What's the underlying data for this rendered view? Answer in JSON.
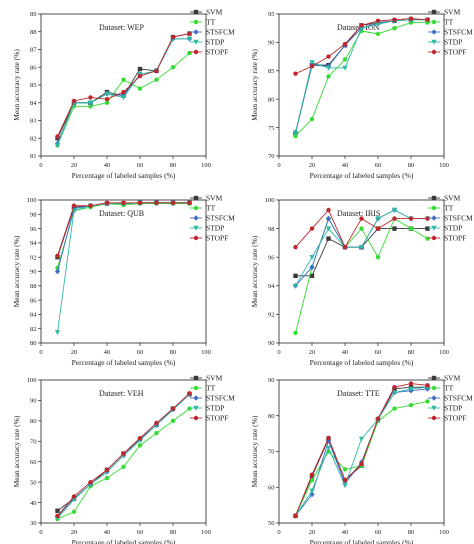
{
  "chart_data": [
    {
      "type": "line",
      "title": "Dataset: WEP",
      "xlabel": "Percentage of labeled samples (%)",
      "ylabel": "Mean accuracy rate (%)",
      "xlim": [
        0,
        100
      ],
      "ylim": [
        81,
        89
      ],
      "xticks": [
        "0",
        "20",
        "40",
        "60",
        "80",
        "100"
      ],
      "yticks": [
        "81",
        "82",
        "83",
        "84",
        "85",
        "86",
        "87",
        "88",
        "89"
      ],
      "x": [
        10,
        20,
        30,
        40,
        50,
        60,
        70,
        80,
        90
      ],
      "series": [
        {
          "name": "SVM",
          "values": [
            82.0,
            84.0,
            84.0,
            84.6,
            84.4,
            85.9,
            85.8,
            87.7,
            87.9
          ]
        },
        {
          "name": "TT",
          "values": [
            81.6,
            83.8,
            83.8,
            84.0,
            85.3,
            84.8,
            85.3,
            86.0,
            86.8
          ]
        },
        {
          "name": "STSFCM",
          "values": [
            81.7,
            84.0,
            84.0,
            84.5,
            84.4,
            85.6,
            85.8,
            87.6,
            87.6
          ]
        },
        {
          "name": "STDP",
          "values": [
            81.6,
            84.0,
            84.0,
            84.5,
            84.3,
            85.6,
            85.8,
            87.6,
            87.6
          ]
        },
        {
          "name": "STOPF",
          "values": [
            82.1,
            84.1,
            84.3,
            84.2,
            84.6,
            85.5,
            85.8,
            87.7,
            87.9
          ]
        }
      ]
    },
    {
      "type": "line",
      "title": "Dataset: ION",
      "xlabel": "Percentage of labeled samples (%)",
      "ylabel": "Mean accuracy rate (%)",
      "xlim": [
        0,
        100
      ],
      "ylim": [
        70,
        95
      ],
      "xticks": [
        "0",
        "20",
        "40",
        "60",
        "80",
        "100"
      ],
      "yticks": [
        "70",
        "75",
        "80",
        "85",
        "90",
        "95"
      ],
      "x": [
        10,
        20,
        30,
        40,
        50,
        60,
        70,
        80,
        90
      ],
      "series": [
        {
          "name": "SVM",
          "values": [
            74.0,
            86.0,
            86.0,
            89.5,
            93.0,
            93.5,
            93.8,
            94.0,
            94.0
          ]
        },
        {
          "name": "TT",
          "values": [
            73.5,
            76.5,
            84.0,
            87.0,
            92.0,
            91.5,
            92.5,
            93.5,
            93.5
          ]
        },
        {
          "name": "STSFCM",
          "values": [
            74.2,
            86.0,
            85.8,
            89.5,
            92.5,
            93.4,
            93.8,
            94.0,
            94.0
          ]
        },
        {
          "name": "STDP",
          "values": [
            74.0,
            86.5,
            85.5,
            85.5,
            92.5,
            93.2,
            93.8,
            94.0,
            94.0
          ]
        },
        {
          "name": "STOPF",
          "values": [
            84.5,
            85.8,
            87.5,
            89.7,
            93.0,
            93.8,
            94.0,
            94.2,
            94.0
          ]
        }
      ]
    },
    {
      "type": "line",
      "title": "Dataset: QUB",
      "xlabel": "Percentage of labeled samples (%)",
      "ylabel": "Mean accuracy rate (%)",
      "xlim": [
        0,
        100
      ],
      "ylim": [
        80,
        100
      ],
      "xticks": [
        "0",
        "20",
        "40",
        "60",
        "80",
        "100"
      ],
      "yticks": [
        "80",
        "82",
        "84",
        "86",
        "88",
        "90",
        "92",
        "94",
        "96",
        "98",
        "100"
      ],
      "x": [
        10,
        20,
        30,
        40,
        50,
        60,
        70,
        80,
        90
      ],
      "series": [
        {
          "name": "SVM",
          "values": [
            92.0,
            99.0,
            99.2,
            99.5,
            99.5,
            99.6,
            99.6,
            99.6,
            99.6
          ]
        },
        {
          "name": "TT",
          "values": [
            90.5,
            98.5,
            99.0,
            99.5,
            99.3,
            99.5,
            99.5,
            99.5,
            99.5
          ]
        },
        {
          "name": "STSFCM",
          "values": [
            90.0,
            98.8,
            99.2,
            99.5,
            99.5,
            99.6,
            99.6,
            99.6,
            99.6
          ]
        },
        {
          "name": "STDP",
          "values": [
            81.5,
            98.5,
            99.2,
            99.5,
            99.5,
            99.6,
            99.6,
            99.6,
            99.6
          ]
        },
        {
          "name": "STOPF",
          "values": [
            92.2,
            99.2,
            99.2,
            99.6,
            99.6,
            99.6,
            99.6,
            99.6,
            99.6
          ]
        }
      ]
    },
    {
      "type": "line",
      "title": "Dataset: IRIS",
      "xlabel": "Percentage of labeled samples (%)",
      "ylabel": "Mean accuracy rate (%)",
      "xlim": [
        0,
        100
      ],
      "ylim": [
        90,
        100
      ],
      "xticks": [
        "0",
        "20",
        "40",
        "60",
        "80",
        "100"
      ],
      "yticks": [
        "90",
        "92",
        "94",
        "96",
        "98",
        "100"
      ],
      "x": [
        10,
        20,
        30,
        40,
        50,
        60,
        70,
        80,
        90
      ],
      "series": [
        {
          "name": "SVM",
          "values": [
            94.7,
            94.7,
            97.3,
            96.7,
            96.7,
            98.0,
            98.0,
            98.0,
            98.0
          ]
        },
        {
          "name": "TT",
          "values": [
            90.7,
            95.3,
            98.7,
            96.7,
            98.0,
            96.0,
            98.7,
            98.0,
            97.3
          ]
        },
        {
          "name": "STSFCM",
          "values": [
            94.0,
            95.3,
            98.7,
            96.7,
            96.7,
            98.7,
            99.3,
            98.7,
            98.7
          ]
        },
        {
          "name": "STDP",
          "values": [
            94.0,
            96.0,
            98.0,
            96.7,
            96.7,
            98.7,
            99.3,
            98.7,
            98.7
          ]
        },
        {
          "name": "STOPF",
          "values": [
            96.7,
            98.0,
            99.3,
            96.7,
            98.7,
            98.0,
            98.7,
            98.7,
            98.7
          ]
        }
      ]
    },
    {
      "type": "line",
      "title": "Dataset: VEH",
      "xlabel": "Percentage of labeled samples (%)",
      "ylabel": "Mean accuracy rate (%)",
      "xlim": [
        0,
        100
      ],
      "ylim": [
        30,
        100
      ],
      "xticks": [
        "0",
        "20",
        "40",
        "60",
        "80",
        "100"
      ],
      "yticks": [
        "30",
        "40",
        "50",
        "60",
        "70",
        "80",
        "90",
        "100"
      ],
      "x": [
        10,
        20,
        30,
        40,
        50,
        60,
        70,
        80,
        90
      ],
      "series": [
        {
          "name": "SVM",
          "values": [
            36.0,
            42.0,
            49.0,
            56.0,
            64.0,
            71.0,
            78.0,
            86.0,
            93.0
          ]
        },
        {
          "name": "TT",
          "values": [
            32.0,
            35.5,
            48.0,
            52.0,
            57.5,
            68.0,
            74.0,
            80.0,
            86.0
          ]
        },
        {
          "name": "STSFCM",
          "values": [
            33.0,
            42.0,
            49.0,
            55.0,
            63.0,
            71.0,
            78.0,
            85.5,
            93.0
          ]
        },
        {
          "name": "STDP",
          "values": [
            32.5,
            41.5,
            49.0,
            55.0,
            63.0,
            70.5,
            78.0,
            85.5,
            93.0
          ]
        },
        {
          "name": "STOPF",
          "values": [
            33.5,
            43.0,
            50.0,
            56.0,
            64.0,
            71.5,
            79.0,
            86.0,
            93.5
          ]
        }
      ]
    },
    {
      "type": "line",
      "title": "Dataset: TTE",
      "xlabel": "Percentage of labeled samples (%)",
      "ylabel": "Mean accuracy rate (%)",
      "xlim": [
        0,
        100
      ],
      "ylim": [
        50,
        90
      ],
      "xticks": [
        "0",
        "20",
        "40",
        "60",
        "80",
        "100"
      ],
      "yticks": [
        "50",
        "60",
        "70",
        "80",
        "90"
      ],
      "x": [
        10,
        20,
        30,
        40,
        50,
        60,
        70,
        80,
        90
      ],
      "series": [
        {
          "name": "SVM",
          "values": [
            52.0,
            63.0,
            73.5,
            62.0,
            66.0,
            79.0,
            87.5,
            88.0,
            88.0
          ]
        },
        {
          "name": "TT",
          "values": [
            52.0,
            62.0,
            70.0,
            65.0,
            66.0,
            78.5,
            82.0,
            83.0,
            84.0
          ]
        },
        {
          "name": "STSFCM",
          "values": [
            52.0,
            58.0,
            73.0,
            61.0,
            67.0,
            79.0,
            86.5,
            87.0,
            87.5
          ]
        },
        {
          "name": "STDP",
          "values": [
            52.0,
            59.0,
            71.0,
            60.5,
            73.5,
            79.0,
            86.5,
            87.5,
            88.0
          ]
        },
        {
          "name": "STOPF",
          "values": [
            52.0,
            63.5,
            73.8,
            62.0,
            66.5,
            79.2,
            88.0,
            89.0,
            88.5
          ]
        }
      ]
    }
  ],
  "colors": {
    "SVM": "#3a3a3a",
    "TT": "#33dd33",
    "STSFCM": "#3b6fc9",
    "STDP": "#2fb9a4",
    "STOPF": "#c0262d"
  },
  "markers": {
    "SVM": "square",
    "TT": "circle",
    "STSFCM": "diamond",
    "STDP": "triangle-down",
    "STOPF": "circle"
  }
}
